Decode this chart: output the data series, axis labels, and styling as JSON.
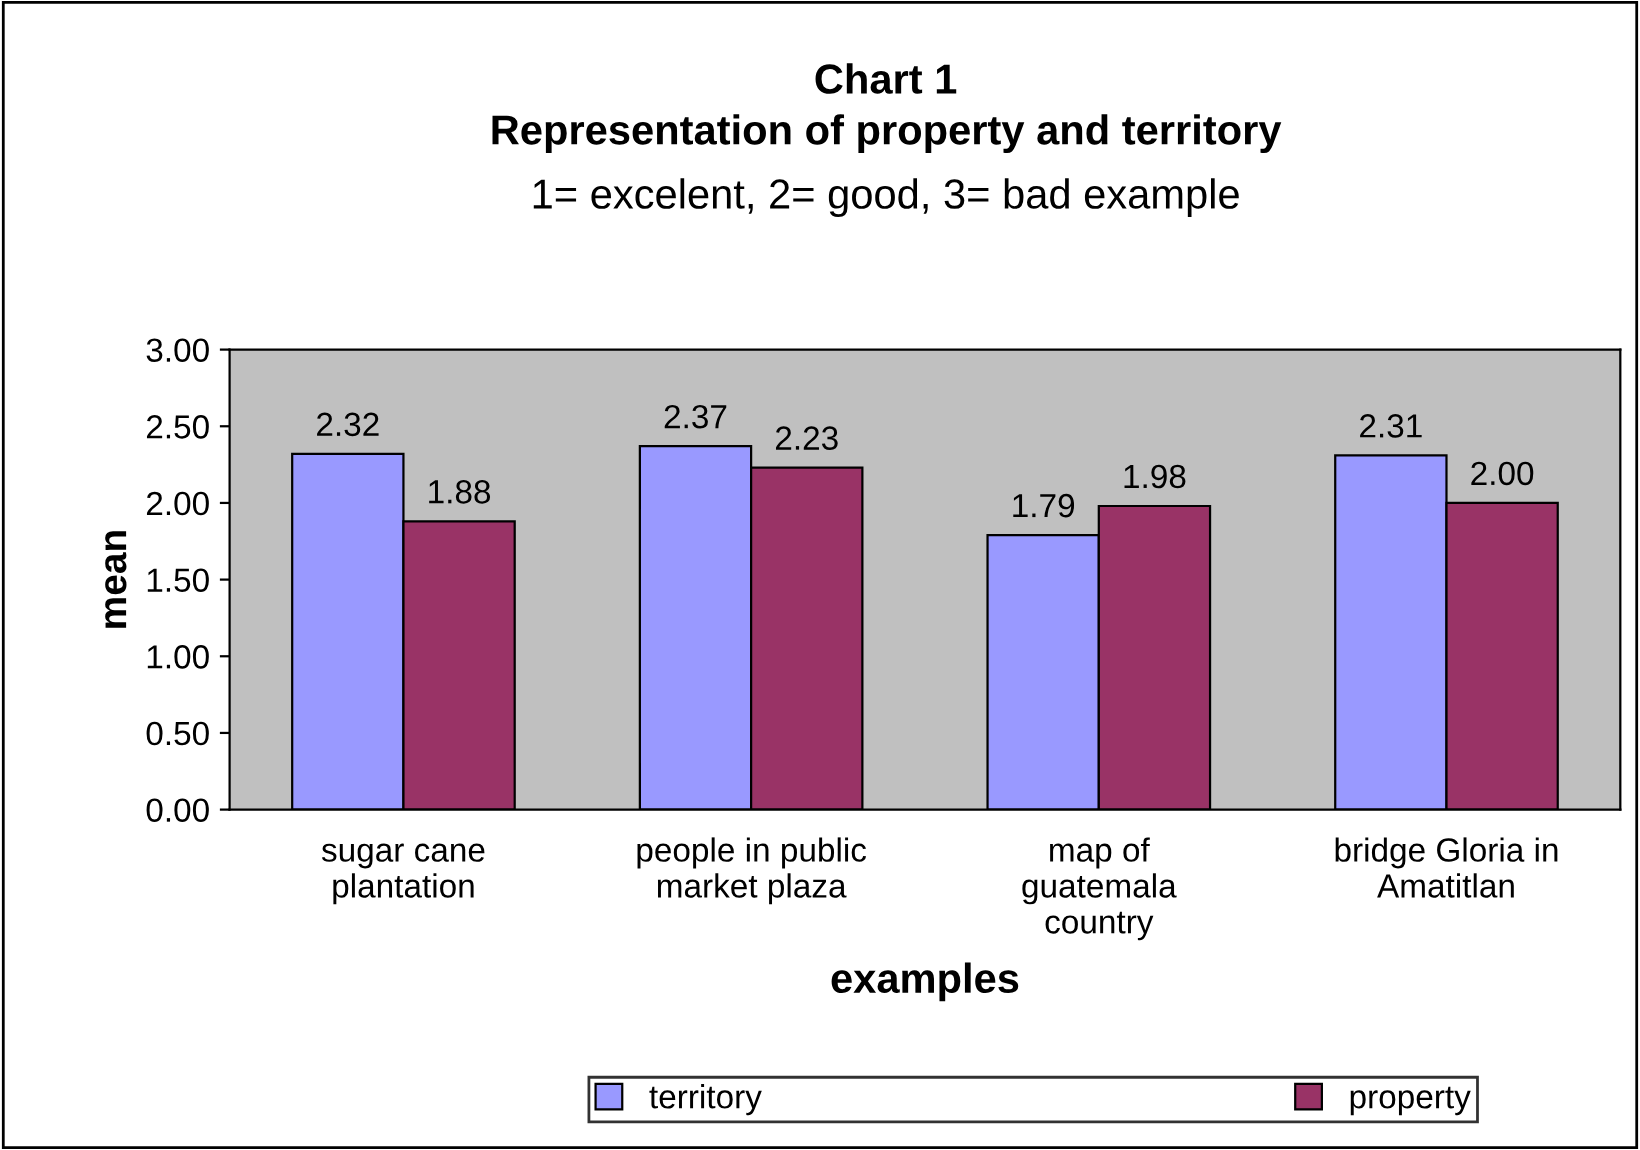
{
  "chart_data": {
    "type": "bar",
    "title": "Chart 1\nRepresentation of property and territory",
    "subtitle": "1= excelent, 2= good, 3= bad example",
    "xlabel": "examples",
    "ylabel": "mean",
    "categories": [
      "sugar cane\nplantation",
      "people in public\nmarket plaza",
      "map of\nguatemala\ncountry",
      "bridge Gloria in\nAmatitlan"
    ],
    "series": [
      {
        "name": "territory",
        "color": "#9999ff",
        "values": [
          2.32,
          2.37,
          1.79,
          2.31
        ],
        "value_labels": [
          "2.32",
          "2.37",
          "1.79",
          "2.31"
        ]
      },
      {
        "name": "property",
        "color": "#993366",
        "values": [
          1.88,
          2.23,
          1.98,
          2.0
        ],
        "value_labels": [
          "1.88",
          "2.23",
          "1.98",
          "2.00"
        ]
      }
    ],
    "ylim": [
      0,
      3
    ],
    "yticks": [
      {
        "value": 0,
        "label": "0.00"
      },
      {
        "value": 0.5,
        "label": "0.50"
      },
      {
        "value": 1,
        "label": "1.00"
      },
      {
        "value": 1.5,
        "label": "1.50"
      },
      {
        "value": 2,
        "label": "2.00"
      },
      {
        "value": 2.5,
        "label": "2.50"
      },
      {
        "value": 3,
        "label": "3.00"
      }
    ],
    "grid": false,
    "legend": "bottom"
  }
}
